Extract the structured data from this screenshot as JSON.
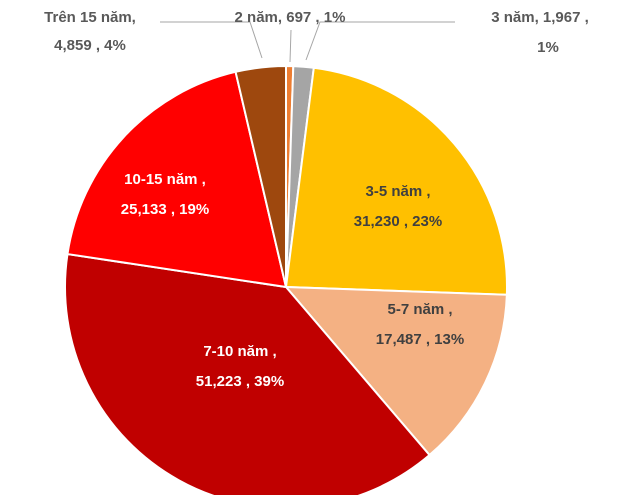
{
  "chart_data": {
    "type": "pie",
    "values": [
      697,
      1967,
      31230,
      17487,
      51223,
      25133,
      4859
    ],
    "labels": [
      [
        "2 năm,  697 , 1%"
      ],
      [
        "3 năm,  1,967 ,",
        "1%"
      ],
      [
        "3-5 năm ,",
        "31,230 , 23%"
      ],
      [
        "5-7 năm ,",
        "17,487 , 13%"
      ],
      [
        "7-10 năm ,",
        "51,223 , 39%"
      ],
      [
        "10-15 năm ,",
        "25,133 , 19%"
      ],
      [
        "Trên 15 năm,",
        "4,859 , 4%"
      ]
    ],
    "colors": [
      "#ED7D31",
      "#A5A5A5",
      "#FFC000",
      "#F4B183",
      "#C00000",
      "#FF0000",
      "#9E480E"
    ],
    "start_angle": 0,
    "direction": "clockwise"
  }
}
